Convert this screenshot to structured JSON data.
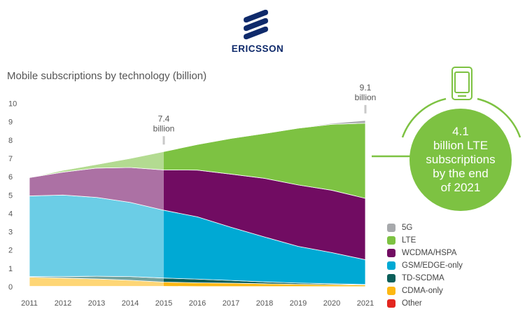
{
  "logo": {
    "brand": "ERICSSON",
    "color": "#0f2a6b"
  },
  "title": "Mobile subscriptions by technology (billion)",
  "callout": {
    "lines": [
      "4.1",
      "billion LTE",
      "subscriptions",
      "by the end",
      "of 2021"
    ],
    "icon": "smartphone-icon",
    "color": "#7dc242"
  },
  "chart_data": {
    "type": "area",
    "stacked": true,
    "title": "Mobile subscriptions by technology (billion)",
    "x": [
      2011,
      2012,
      2013,
      2014,
      2015,
      2016,
      2017,
      2018,
      2019,
      2020,
      2021
    ],
    "xticks": [
      "2011",
      "2012",
      "2013",
      "2014",
      "2015",
      "2016",
      "2017",
      "2018",
      "2019",
      "2020",
      "2021"
    ],
    "yticks": [
      "0",
      "1",
      "2",
      "3",
      "4",
      "5",
      "6",
      "7",
      "8",
      "9",
      "10"
    ],
    "ylim": [
      0,
      10
    ],
    "grid": false,
    "legend_position": "bottom-right",
    "historical_until": 2015,
    "series": [
      {
        "name": "Other",
        "color": "#e3261f",
        "values": [
          0.02,
          0.02,
          0.02,
          0.02,
          0.02,
          0.01,
          0.01,
          0.01,
          0.01,
          0.01,
          0.01
        ]
      },
      {
        "name": "CDMA-only",
        "color": "#fdb813",
        "values": [
          0.5,
          0.45,
          0.4,
          0.33,
          0.23,
          0.2,
          0.18,
          0.15,
          0.12,
          0.1,
          0.08
        ]
      },
      {
        "name": "TD-SCDMA",
        "color": "#0b5f5a",
        "values": [
          0.03,
          0.08,
          0.15,
          0.2,
          0.22,
          0.2,
          0.15,
          0.1,
          0.07,
          0.05,
          0.03
        ]
      },
      {
        "name": "GSM/EDGE-only",
        "color": "#00a9d4",
        "values": [
          4.4,
          4.45,
          4.3,
          4.05,
          3.7,
          3.4,
          2.9,
          2.45,
          2.0,
          1.7,
          1.35
        ]
      },
      {
        "name": "WCDMA/HSPA",
        "color": "#710c62",
        "values": [
          1.0,
          1.25,
          1.6,
          1.9,
          2.2,
          2.55,
          2.9,
          3.2,
          3.35,
          3.4,
          3.35
        ]
      },
      {
        "name": "LTE",
        "color": "#7dc242",
        "values": [
          0.0,
          0.1,
          0.2,
          0.5,
          1.0,
          1.4,
          1.95,
          2.45,
          3.1,
          3.6,
          4.1
        ]
      },
      {
        "name": "5G",
        "color": "#a7a9ac",
        "values": [
          0,
          0,
          0,
          0,
          0,
          0,
          0,
          0,
          0.02,
          0.05,
          0.15
        ]
      }
    ],
    "legend_order": [
      "5G",
      "LTE",
      "WCDMA/HSPA",
      "GSM/EDGE-only",
      "TD-SCDMA",
      "CDMA-only",
      "Other"
    ],
    "annotations": [
      {
        "x": 2015,
        "text_value": "7.4",
        "text_unit": "billion"
      },
      {
        "x": 2021,
        "text_value": "9.1",
        "text_unit": "billion"
      }
    ]
  }
}
